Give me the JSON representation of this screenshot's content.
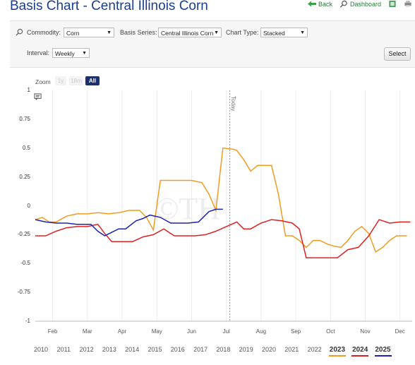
{
  "header": {
    "title": "Basis Chart - Central Illinois Corn",
    "back_label": "Back",
    "dashboard_label": "Dashboard"
  },
  "controls": {
    "commodity_label": "Commodity:",
    "commodity_value": "Corn",
    "basis_series_label": "Basis Series:",
    "basis_series_value": "Central Illinois Corn",
    "chart_type_label": "Chart Type:",
    "chart_type_value": "Stacked",
    "interval_label": "Interval:",
    "interval_value": "Weekly",
    "select_button": "Select"
  },
  "zoom": {
    "label": "Zoom",
    "buttons": [
      "1y",
      "18m",
      "All"
    ],
    "active": "All"
  },
  "years": {
    "labels": [
      "2010",
      "2011",
      "2012",
      "2013",
      "2014",
      "2015",
      "2016",
      "2017",
      "2018",
      "2019",
      "2020",
      "2021",
      "2022",
      "2023",
      "2024",
      "2025"
    ],
    "highlighted": [
      "2023",
      "2024",
      "2025"
    ]
  },
  "watermark": "©TH",
  "chart_data": {
    "type": "line",
    "title": "",
    "xlabel": "",
    "ylabel": "",
    "ylim": [
      -1,
      1
    ],
    "yticks": [
      "1",
      "0.75",
      "0.5",
      "0.25",
      "0",
      "-0.25",
      "-0.5",
      "-0.75",
      "-1"
    ],
    "xticks": [
      "Feb",
      "Mar",
      "Apr",
      "May",
      "Jun",
      "Jul",
      "Aug",
      "Sep",
      "Oct",
      "Nov",
      "Dec"
    ],
    "today_label": "Today",
    "series": [
      {
        "name": "2023",
        "color": "#f29c1e",
        "x": [
          1.0,
          1.2,
          1.4,
          1.6,
          1.9,
          2.2,
          2.5,
          2.8,
          3.1,
          3.4,
          3.7,
          3.9,
          4.0,
          4.2,
          4.4,
          4.6,
          4.8,
          5.0,
          5.2,
          5.5,
          5.8,
          6.0,
          6.2,
          6.4,
          6.7,
          6.8,
          7.0,
          7.2,
          7.4,
          7.6,
          7.8,
          8.0,
          8.2,
          8.4,
          8.6,
          8.8,
          9.0,
          9.2,
          9.4,
          9.6,
          9.8,
          10.0,
          10.2,
          10.4,
          10.6,
          10.8,
          11.0,
          11.2,
          11.4,
          11.7
        ],
        "values": [
          -0.12,
          -0.1,
          -0.14,
          -0.14,
          -0.09,
          -0.07,
          -0.07,
          -0.06,
          -0.07,
          -0.06,
          -0.04,
          -0.04,
          -0.04,
          -0.1,
          -0.21,
          0.22,
          0.22,
          0.22,
          0.22,
          0.22,
          0.2,
          0.1,
          -0.04,
          0.5,
          0.49,
          0.48,
          0.4,
          0.3,
          0.35,
          0.35,
          0.35,
          0.1,
          -0.26,
          -0.26,
          -0.3,
          -0.36,
          -0.3,
          -0.3,
          -0.33,
          -0.35,
          -0.36,
          -0.3,
          -0.22,
          -0.18,
          -0.24,
          -0.4,
          -0.36,
          -0.3,
          -0.26,
          -0.26
        ]
      },
      {
        "name": "2024",
        "color": "#e02020",
        "x": [
          1.0,
          1.3,
          1.6,
          1.9,
          2.2,
          2.5,
          2.8,
          3.0,
          3.2,
          3.5,
          3.8,
          4.1,
          4.4,
          4.7,
          5.0,
          5.3,
          5.6,
          5.9,
          6.2,
          6.5,
          6.8,
          7.0,
          7.2,
          7.5,
          7.8,
          8.1,
          8.4,
          8.6,
          8.8,
          9.1,
          9.4,
          9.7,
          10.0,
          10.3,
          10.6,
          10.9,
          11.2,
          11.5,
          11.8
        ],
        "values": [
          -0.26,
          -0.26,
          -0.22,
          -0.19,
          -0.18,
          -0.18,
          -0.16,
          -0.24,
          -0.31,
          -0.31,
          -0.31,
          -0.27,
          -0.25,
          -0.2,
          -0.26,
          -0.26,
          -0.26,
          -0.25,
          -0.22,
          -0.18,
          -0.14,
          -0.2,
          -0.2,
          -0.15,
          -0.12,
          -0.13,
          -0.15,
          -0.2,
          -0.45,
          -0.45,
          -0.45,
          -0.45,
          -0.38,
          -0.36,
          -0.26,
          -0.12,
          -0.15,
          -0.14,
          -0.14
        ]
      },
      {
        "name": "2025",
        "color": "#1c22b4",
        "x": [
          1.0,
          1.3,
          1.6,
          1.9,
          2.2,
          2.4,
          2.6,
          2.8,
          3.0,
          3.2,
          3.4,
          3.6,
          3.9,
          4.1,
          4.3,
          4.6,
          4.9,
          5.1,
          5.4,
          5.7,
          6.0,
          6.2,
          6.4
        ],
        "values": [
          -0.12,
          -0.14,
          -0.15,
          -0.15,
          -0.16,
          -0.16,
          -0.16,
          -0.22,
          -0.26,
          -0.23,
          -0.2,
          -0.2,
          -0.13,
          -0.11,
          -0.08,
          -0.1,
          -0.15,
          -0.15,
          -0.15,
          -0.14,
          -0.05,
          -0.03,
          -0.03
        ]
      }
    ],
    "today_x": 6.6
  }
}
